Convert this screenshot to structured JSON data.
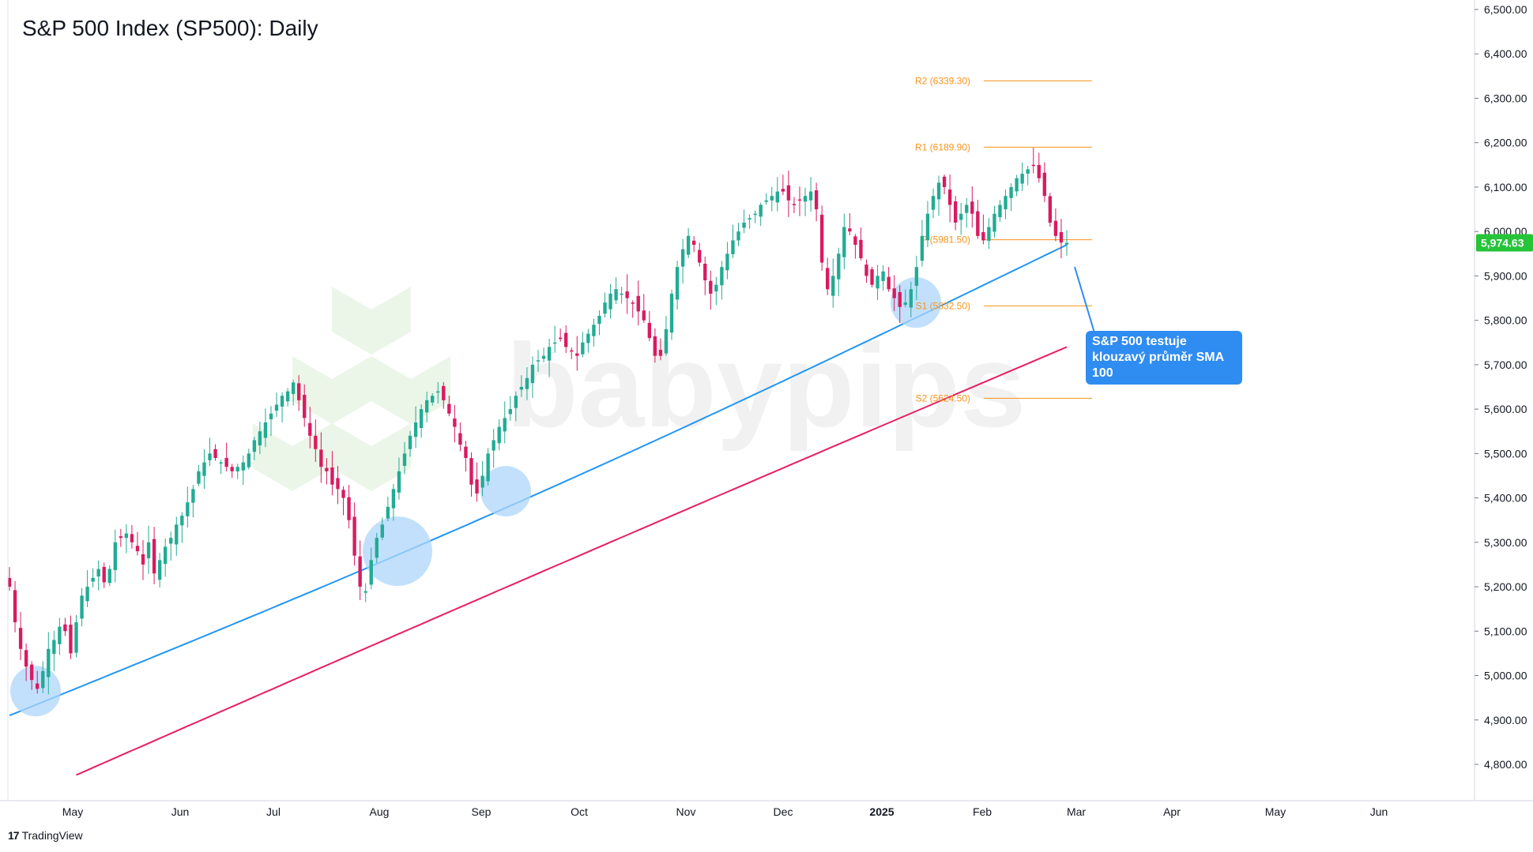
{
  "title": "S&P 500 Index (SP500): Daily",
  "watermark": "babypips",
  "branding": {
    "tradingview_label": "TradingView",
    "logo_glyph": "17"
  },
  "annotation": {
    "text": "S&P 500 testuje klouzavý průměr SMA 100"
  },
  "colors": {
    "up": "#22ab94",
    "down": "#d81b60",
    "sma100": "#2196f3",
    "sma200": "#e91e63",
    "pivot": "#f7931a",
    "callout": "#2f8cf0",
    "last_price_badge": "#26c439",
    "highlight": "#aed6fb"
  },
  "chart_data": {
    "type": "candlestick",
    "title": "S&P 500 Index (SP500): Daily",
    "ylim": [
      4700,
      6500
    ],
    "yticks": [
      "6,500.00",
      "6,400.00",
      "6,300.00",
      "6,200.00",
      "6,100.00",
      "6,000.00",
      "5,900.00",
      "5,800.00",
      "5,700.00",
      "5,600.00",
      "5,500.00",
      "5,400.00",
      "5,300.00",
      "5,200.00",
      "5,100.00",
      "5,000.00",
      "4,900.00",
      "4,800.00"
    ],
    "ytick_values": [
      6500,
      6400,
      6300,
      6200,
      6100,
      6000,
      5900,
      5800,
      5700,
      5600,
      5500,
      5400,
      5300,
      5200,
      5100,
      5000,
      4900,
      4800
    ],
    "xticks": [
      "May",
      "Jun",
      "Jul",
      "Aug",
      "Sep",
      "Oct",
      "Nov",
      "Dec",
      "2025",
      "Feb",
      "Mar",
      "Apr",
      "May",
      "Jun"
    ],
    "last_price": "5,974.63",
    "pivot_levels": [
      {
        "label": "R2 (6339.30)",
        "value": 6339.3
      },
      {
        "label": "R1 (6189.90)",
        "value": 6189.9
      },
      {
        "label": "P (5981.50)",
        "value": 5981.5
      },
      {
        "label": "S1 (5832.50)",
        "value": 5832.5
      },
      {
        "label": "S2 (5624.50)",
        "value": 5624.5
      }
    ],
    "sma100_name": "SMA 100",
    "close_path": [
      5200,
      5120,
      5060,
      5020,
      4990,
      4970,
      5010,
      5060,
      5080,
      5110,
      5100,
      5050,
      5120,
      5180,
      5200,
      5220,
      5240,
      5210,
      5240,
      5300,
      5310,
      5320,
      5300,
      5280,
      5250,
      5300,
      5230,
      5260,
      5290,
      5310,
      5340,
      5360,
      5390,
      5420,
      5460,
      5480,
      5500,
      5490,
      5480,
      5470,
      5460,
      5470,
      5480,
      5500,
      5530,
      5550,
      5570,
      5590,
      5610,
      5630,
      5640,
      5660,
      5620,
      5580,
      5540,
      5510,
      5470,
      5460,
      5430,
      5420,
      5400,
      5350,
      5270,
      5200,
      5190,
      5260,
      5310,
      5340,
      5380,
      5420,
      5460,
      5500,
      5540,
      5570,
      5600,
      5620,
      5630,
      5640,
      5620,
      5590,
      5560,
      5520,
      5490,
      5430,
      5410,
      5450,
      5500,
      5530,
      5560,
      5580,
      5600,
      5630,
      5650,
      5670,
      5700,
      5710,
      5720,
      5740,
      5750,
      5760,
      5740,
      5730,
      5720,
      5750,
      5770,
      5790,
      5810,
      5840,
      5860,
      5870,
      5860,
      5850,
      5840,
      5820,
      5800,
      5760,
      5720,
      5720,
      5780,
      5860,
      5920,
      5960,
      5990,
      5970,
      5930,
      5890,
      5860,
      5880,
      5920,
      5950,
      5980,
      6000,
      6020,
      6030,
      6040,
      6060,
      6070,
      6080,
      6090,
      6090,
      6070,
      6060,
      6070,
      6080,
      6090,
      6050,
      5930,
      5870,
      5900,
      5950,
      6010,
      6000,
      5970,
      5940,
      5900,
      5880,
      5900,
      5910,
      5870,
      5850,
      5830,
      5840,
      5870,
      5920,
      5990,
      6040,
      6080,
      6110,
      6100,
      6060,
      6020,
      6040,
      6060,
      6040,
      5990,
      5980,
      6010,
      6040,
      6060,
      6080,
      6100,
      6120,
      6130,
      6140,
      6150,
      6120,
      6080,
      6020,
      5990,
      5975,
      5974.63
    ]
  }
}
